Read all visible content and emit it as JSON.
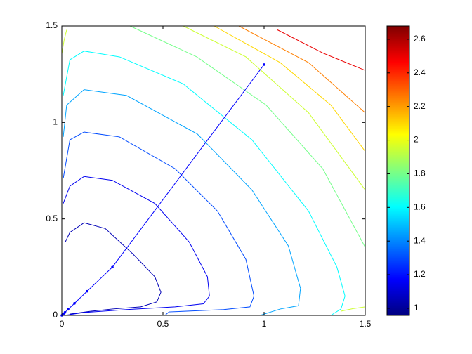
{
  "chart_data": {
    "type": "contour",
    "xlim": [
      0,
      1.5
    ],
    "ylim": [
      0,
      1.5
    ],
    "xticks": [
      0,
      0.5,
      1,
      1.5
    ],
    "yticks": [
      0,
      0.5,
      1,
      1.5
    ],
    "clim": [
      0.958,
      2.679
    ],
    "cticks": [
      1,
      1.2,
      1.4,
      1.6,
      1.8,
      2,
      2.2,
      2.4,
      2.6
    ],
    "contours": [
      {
        "level": 1.05,
        "x": [
          0.017,
          0.04,
          0.11,
          0.215,
          0.35,
          0.46,
          0.49,
          0.47,
          0.39,
          0.25,
          0.146,
          0.04
        ],
        "y": [
          0.38,
          0.43,
          0.48,
          0.45,
          0.32,
          0.2,
          0.12,
          0.07,
          0.044,
          0.033,
          0.022,
          0.007
        ]
      },
      {
        "level": 1.15,
        "x": [
          0.007,
          0.04,
          0.11,
          0.25,
          0.46,
          0.63,
          0.72,
          0.73,
          0.7,
          0.56,
          0.32,
          0.11,
          0.014
        ],
        "y": [
          0.58,
          0.67,
          0.72,
          0.7,
          0.58,
          0.38,
          0.2,
          0.1,
          0.06,
          0.044,
          0.03,
          0.015,
          0
        ]
      },
      {
        "level": 1.3,
        "x": [
          0.007,
          0.04,
          0.11,
          0.285,
          0.56,
          0.77,
          0.91,
          0.95,
          0.93,
          0.8,
          0.53,
          0.51
        ],
        "y": [
          0.71,
          0.91,
          0.95,
          0.925,
          0.76,
          0.54,
          0.29,
          0.1,
          0.044,
          0.03,
          0.018,
          0
        ]
      },
      {
        "level": 1.45,
        "x": [
          0.007,
          0.024,
          0.11,
          0.32,
          0.67,
          0.94,
          1.12,
          1.18,
          1.17,
          1.08,
          0.98
        ],
        "y": [
          0.925,
          1.09,
          1.17,
          1.14,
          0.94,
          0.65,
          0.36,
          0.14,
          0.05,
          0.033,
          0
        ]
      },
      {
        "level": 1.6,
        "x": [
          0.007,
          0.04,
          0.11,
          0.285,
          0.6,
          0.94,
          1.22,
          1.36,
          1.4,
          1.38,
          1.33
        ],
        "y": [
          1.14,
          1.325,
          1.37,
          1.34,
          1.2,
          0.91,
          0.54,
          0.25,
          0.1,
          0.033,
          0
        ]
      },
      {
        "level": 1.8,
        "x": [
          0.337,
          0.667,
          1.01,
          1.29,
          1.5
        ],
        "y": [
          1.5,
          1.34,
          1.09,
          0.76,
          0.353
        ]
      },
      {
        "level": 1.95,
        "x": [
          0.6,
          0.91,
          1.22,
          1.5
        ],
        "y": [
          1.5,
          1.34,
          1.05,
          0.65
        ]
      },
      {
        "level": 1.95,
        "x": [
          0,
          0.012,
          0.024
        ],
        "y": [
          1.355,
          1.43,
          1.48
        ]
      },
      {
        "level": 1.95,
        "x": [
          1.38,
          1.44,
          1.5
        ],
        "y": [
          0.022,
          0.035,
          0.044
        ]
      },
      {
        "level": 2.1,
        "x": [
          0.753,
          1.08,
          1.33,
          1.5
        ],
        "y": [
          1.5,
          1.31,
          1.09,
          0.85
        ]
      },
      {
        "level": 2.25,
        "x": [
          0.875,
          1.22,
          1.5
        ],
        "y": [
          1.5,
          1.31,
          1.05
        ]
      },
      {
        "level": 2.5,
        "x": [
          1.066,
          1.29,
          1.5
        ],
        "y": [
          1.48,
          1.36,
          1.27
        ]
      }
    ],
    "path": {
      "color": "#0000ff",
      "x": [
        1,
        0.25,
        0.125,
        0.0625,
        0.03125,
        0.015625,
        0.0078125,
        0
      ],
      "y": [
        1.3,
        0.25,
        0.125,
        0.0625,
        0.03125,
        0.015625,
        0.0078125,
        0
      ]
    }
  }
}
